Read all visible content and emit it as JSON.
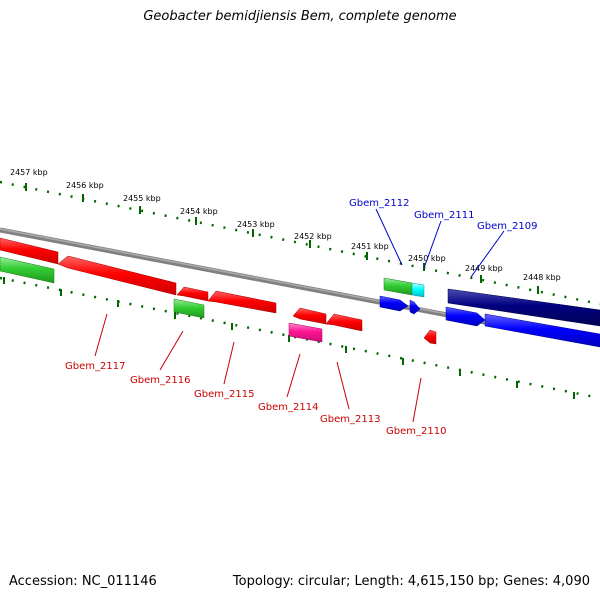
{
  "title": "Geobacter bemidjiensis Bem, complete genome",
  "footer": {
    "accession": "Accession: NC_011146",
    "topology": "Topology: circular; Length: 4,615,150 bp; Genes: 4,090"
  },
  "scale_labels": [
    "2457 kbp",
    "2456 kbp",
    "2455 kbp",
    "2454 kbp",
    "2453 kbp",
    "2452 kbp",
    "2451 kbp",
    "2450 kbp",
    "2449 kbp",
    "2448 kbp"
  ],
  "gene_labels_top": [
    "Gbem_2112",
    "Gbem_2111",
    "Gbem_2109"
  ],
  "gene_labels_bottom": [
    "Gbem_2117",
    "Gbem_2116",
    "Gbem_2115",
    "Gbem_2114",
    "Gbem_2113",
    "Gbem_2110"
  ],
  "colors": {
    "red": "#ff0000",
    "green": "#33cc33",
    "blue": "#0000ff",
    "navy": "#000080",
    "cyan": "#00ffff",
    "magenta": "#ff1493",
    "tick": "#006600",
    "backbone": "#808080",
    "label_blue": "#0000cc",
    "label_red": "#cc0000"
  }
}
